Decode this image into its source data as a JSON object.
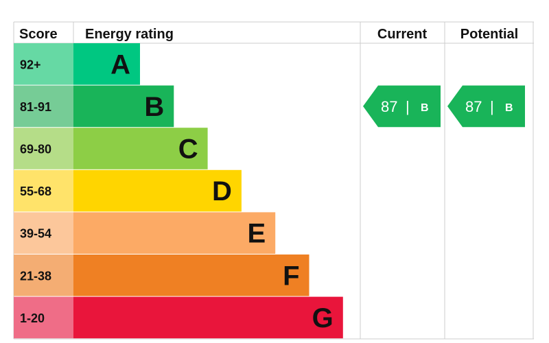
{
  "headers": {
    "score": "Score",
    "energy_rating": "Energy rating",
    "current": "Current",
    "potential": "Potential"
  },
  "chart_data": {
    "type": "bar",
    "bands": [
      {
        "score": "92+",
        "letter": "A",
        "color": "#00c781",
        "score_bg": "#66d9a4"
      },
      {
        "score": "81-91",
        "letter": "B",
        "color": "#19b459",
        "score_bg": "#76cc96"
      },
      {
        "score": "69-80",
        "letter": "C",
        "color": "#8dce46",
        "score_bg": "#b5dd88"
      },
      {
        "score": "55-68",
        "letter": "D",
        "color": "#ffd500",
        "score_bg": "#ffe36a"
      },
      {
        "score": "39-54",
        "letter": "E",
        "color": "#fcaa65",
        "score_bg": "#fcc79b"
      },
      {
        "score": "21-38",
        "letter": "F",
        "color": "#ef8023",
        "score_bg": "#f4ad73"
      },
      {
        "score": "1-20",
        "letter": "G",
        "color": "#e9153b",
        "score_bg": "#ef6d87"
      }
    ],
    "current": {
      "value": 87,
      "separator": "|",
      "letter": "B",
      "color": "#19b459"
    },
    "potential": {
      "value": 87,
      "separator": "|",
      "letter": "B",
      "color": "#19b459"
    }
  }
}
